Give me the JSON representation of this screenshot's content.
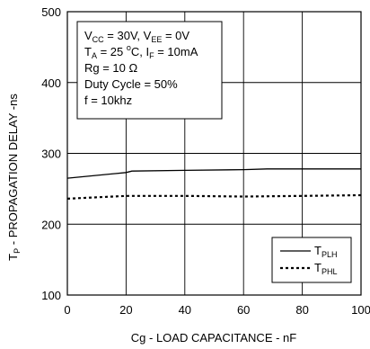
{
  "chart_data": {
    "type": "line",
    "xlabel": "Cg - LOAD CAPACITANCE - nF",
    "ylabel": {
      "prefix": "T",
      "sub": "P",
      "rest": " - PROPAGATION DELAY -ns"
    },
    "xlim": [
      0,
      100
    ],
    "ylim": [
      100,
      500
    ],
    "x_ticks": [
      0,
      20,
      40,
      60,
      80,
      100
    ],
    "y_ticks": [
      100,
      200,
      300,
      400,
      500
    ],
    "grid": true,
    "annotation_lines": [
      [
        {
          "t": "V"
        },
        {
          "t": "CC",
          "sub": true
        },
        {
          "t": " = 30V, V"
        },
        {
          "t": "EE",
          "sub": true
        },
        {
          "t": " = 0V"
        }
      ],
      [
        {
          "t": "T"
        },
        {
          "t": "A",
          "sub": true
        },
        {
          "t": " = 25 "
        },
        {
          "t": "o",
          "sup": true
        },
        {
          "t": "C, I"
        },
        {
          "t": "F",
          "sub": true
        },
        {
          "t": " = 10mA"
        }
      ],
      [
        {
          "t": "Rg = 10 Ω"
        }
      ],
      [
        {
          "t": "Duty Cycle = 50%"
        }
      ],
      [
        {
          "t": "f = 10khz"
        }
      ]
    ],
    "series": [
      {
        "name": "T",
        "name_sub": "PLH",
        "style": "solid",
        "x": [
          0,
          20,
          22,
          40,
          60,
          68,
          100
        ],
        "y": [
          265,
          273,
          275,
          276,
          277,
          278,
          278
        ]
      },
      {
        "name": "T",
        "name_sub": "PHL",
        "style": "dotted",
        "x": [
          0,
          20,
          40,
          60,
          80,
          100
        ],
        "y": [
          236,
          240,
          240,
          239,
          240,
          241
        ]
      }
    ],
    "legend_position": "bottom-right"
  }
}
